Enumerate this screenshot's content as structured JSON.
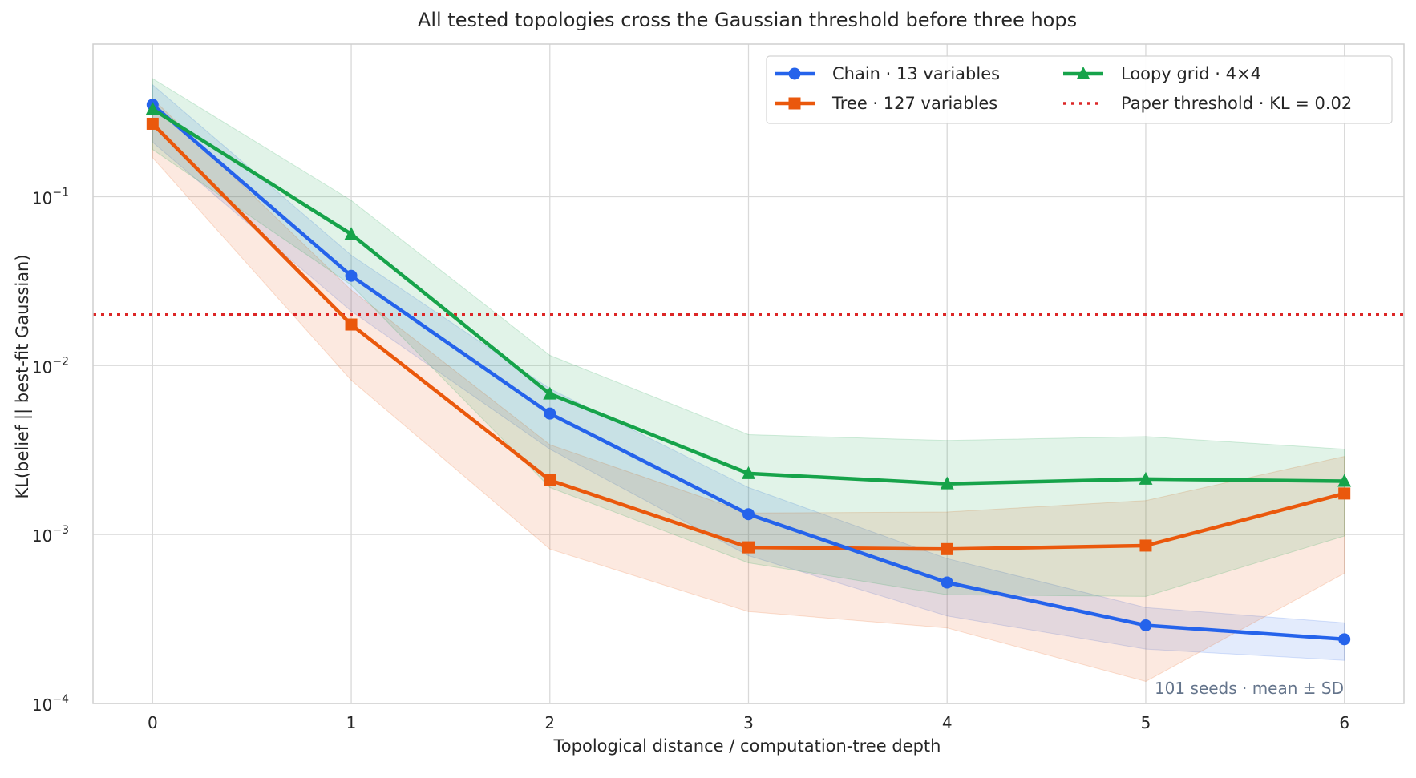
{
  "chart_data": {
    "type": "line",
    "title": "All tested topologies cross the Gaussian threshold before three hops",
    "xlabel": "Topological distance / computation-tree depth",
    "ylabel": "KL(belief || best-fit Gaussian)",
    "yscale": "log",
    "xlim": [
      -0.3,
      6.3
    ],
    "ylim": [
      0.0001,
      0.8
    ],
    "grid": true,
    "legend_placement": "top-right",
    "x": [
      0,
      1,
      2,
      3,
      4,
      5,
      6
    ],
    "x_tick_labels": [
      "0",
      "1",
      "2",
      "3",
      "4",
      "5",
      "6"
    ],
    "y_ticks": [
      {
        "value": 0.1,
        "mantissa": "10",
        "exponent": "−1"
      },
      {
        "value": 0.01,
        "mantissa": "10",
        "exponent": "−2"
      },
      {
        "value": 0.001,
        "mantissa": "10",
        "exponent": "−3"
      },
      {
        "value": 0.0001,
        "mantissa": "10",
        "exponent": "−4"
      }
    ],
    "series": [
      {
        "name": "Chain · 13 variables",
        "color": "#2563eb",
        "marker": "circle",
        "values": [
          0.35,
          0.034,
          0.0052,
          0.00132,
          0.00052,
          0.00029,
          0.00024
        ],
        "lower": [
          0.21,
          0.021,
          0.0032,
          0.00075,
          0.00033,
          0.00021,
          0.00018
        ],
        "upper": [
          0.46,
          0.045,
          0.0073,
          0.0019,
          0.00072,
          0.00037,
          0.0003
        ]
      },
      {
        "name": "Tree · 127 variables",
        "color": "#ea580c",
        "marker": "square",
        "values": [
          0.27,
          0.0175,
          0.0021,
          0.00084,
          0.00082,
          0.00086,
          0.00175
        ],
        "lower": [
          0.17,
          0.0082,
          0.00082,
          0.00035,
          0.00028,
          0.000135,
          0.00059
        ],
        "upper": [
          0.38,
          0.028,
          0.0034,
          0.00134,
          0.00136,
          0.00159,
          0.0029
        ]
      },
      {
        "name": "Loopy grid · 4×4",
        "color": "#16a34a",
        "marker": "triangle",
        "values": [
          0.33,
          0.06,
          0.0068,
          0.0023,
          0.002,
          0.00213,
          0.00207
        ],
        "lower": [
          0.19,
          0.03,
          0.0019,
          0.00068,
          0.00044,
          0.00043,
          0.00098
        ],
        "upper": [
          0.5,
          0.095,
          0.0115,
          0.0039,
          0.0036,
          0.0038,
          0.0032
        ]
      }
    ],
    "threshold": {
      "name": "Paper threshold · KL = 0.02",
      "value": 0.02,
      "color": "#dc2626",
      "style": "dotted"
    },
    "annotation": "101 seeds · mean ± SD"
  }
}
